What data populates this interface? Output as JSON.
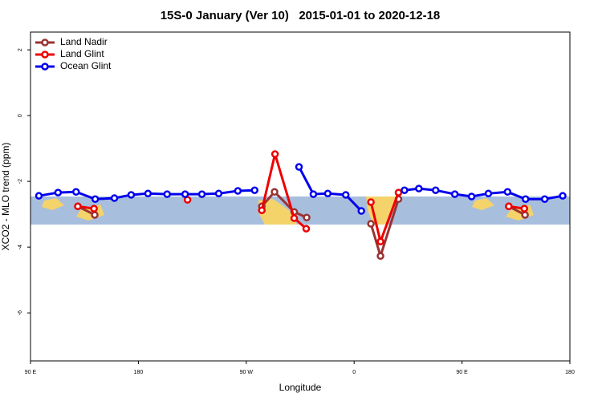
{
  "chart_data": {
    "type": "line",
    "title": "15S-0 January (Ver 10)   2015-01-01 to 2020-12-18",
    "x_label": "Longitude",
    "y_label": "XCO2 - MLO trend (ppm)",
    "xlim": [
      90,
      540
    ],
    "ylim": [
      -7.46,
      2.54
    ],
    "xticks": [
      {
        "value": 90,
        "label": "90 E"
      },
      180,
      {
        "value": 270,
        "label": "90 W"
      },
      {
        "value": 360,
        "label": "0"
      },
      {
        "value": 450,
        "label": "90 E"
      },
      {
        "value": 540,
        "label": "180"
      }
    ],
    "yticks": [
      2,
      0,
      -2,
      -4,
      -6
    ],
    "legend": "top-left",
    "series": [
      {
        "name": "Land Nadir",
        "color": "#993333",
        "x": [
          129.5,
          143.6,
          null,
          283,
          293.6,
          310,
          320.4,
          null,
          374,
          382,
          397,
          null,
          489,
          502.6
        ],
        "values": [
          -2.76,
          -3.02,
          null,
          -2.76,
          -2.32,
          -2.93,
          -3.1,
          null,
          -3.29,
          -4.27,
          -2.54,
          null,
          -2.76,
          -3.02
        ]
      },
      {
        "name": "Land Glint",
        "color": "#ee0000",
        "x": [
          129.5,
          143,
          null,
          221,
          null,
          283,
          294,
          310,
          320,
          null,
          374,
          382,
          397,
          null,
          489,
          502
        ],
        "values": [
          -2.76,
          -2.83,
          null,
          -2.56,
          null,
          -2.88,
          -1.17,
          -3.12,
          -3.44,
          null,
          -2.63,
          -3.83,
          -2.34,
          null,
          -2.76,
          -2.83
        ]
      },
      {
        "name": "Ocean Glint",
        "color": "#0000ee",
        "x": [
          97,
          113,
          128,
          144,
          160,
          174,
          188,
          204,
          219,
          233,
          247,
          263,
          277,
          null,
          314,
          326,
          338,
          353,
          366,
          null,
          402,
          414,
          428,
          444,
          458,
          472,
          488,
          503,
          519,
          534
        ],
        "values": [
          -2.44,
          -2.34,
          -2.32,
          -2.54,
          -2.51,
          -2.41,
          -2.37,
          -2.39,
          -2.39,
          -2.39,
          -2.37,
          -2.29,
          -2.27,
          null,
          -1.56,
          -2.39,
          -2.37,
          -2.41,
          -2.9,
          null,
          -2.27,
          -2.22,
          -2.27,
          -2.39,
          -2.46,
          -2.37,
          -2.32,
          -2.54,
          -2.54,
          -2.44
        ]
      }
    ]
  }
}
